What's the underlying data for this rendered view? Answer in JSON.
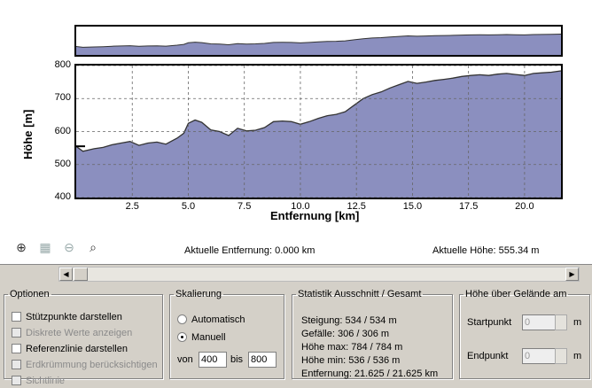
{
  "chart_data": {
    "type": "area",
    "title": "",
    "xlabel": "Entfernung [km]",
    "ylabel": "Höhe [m]",
    "xlim": [
      0,
      21.625
    ],
    "ylim": [
      400,
      800
    ],
    "xticks": [
      "2.5",
      "5.0",
      "7.5",
      "10.0",
      "12.5",
      "15.0",
      "17.5",
      "20.0"
    ],
    "yticks": [
      "400",
      "500",
      "600",
      "700",
      "800"
    ],
    "grid": true,
    "x": [
      0,
      0.3,
      0.8,
      1.2,
      1.6,
      2.0,
      2.4,
      2.8,
      3.2,
      3.6,
      4.0,
      4.5,
      4.8,
      5.0,
      5.3,
      5.6,
      6.0,
      6.4,
      6.8,
      7.2,
      7.6,
      8.0,
      8.4,
      8.8,
      9.2,
      9.6,
      10.0,
      10.4,
      10.8,
      11.2,
      11.6,
      12.0,
      12.4,
      12.8,
      13.2,
      13.6,
      14.0,
      14.4,
      14.8,
      15.2,
      15.6,
      16.0,
      16.4,
      16.8,
      17.2,
      17.6,
      18.0,
      18.4,
      18.8,
      19.2,
      19.6,
      20.0,
      20.4,
      20.8,
      21.2,
      21.625
    ],
    "y": [
      555,
      540,
      548,
      552,
      560,
      565,
      570,
      558,
      565,
      568,
      562,
      580,
      595,
      625,
      635,
      628,
      605,
      600,
      588,
      610,
      602,
      604,
      612,
      630,
      632,
      630,
      622,
      630,
      640,
      648,
      652,
      660,
      680,
      700,
      712,
      720,
      732,
      742,
      752,
      746,
      750,
      755,
      758,
      762,
      767,
      770,
      772,
      770,
      774,
      776,
      773,
      770,
      776,
      778,
      780,
      784
    ],
    "marker": {
      "x": 0,
      "y": 555.34
    }
  },
  "toolbar": {
    "icons": [
      {
        "name": "zoom-in-icon",
        "glyph": "⊕",
        "enabled": true
      },
      {
        "name": "zoom-area-icon",
        "glyph": "▦",
        "enabled": false
      },
      {
        "name": "zoom-out-icon",
        "glyph": "⊖",
        "enabled": false
      },
      {
        "name": "zoom-full-icon",
        "glyph": "⌕",
        "enabled": true
      }
    ],
    "current_distance": "Aktuelle Entfernung: 0.000 km",
    "current_height": "Aktuelle Höhe: 555.34 m"
  },
  "scrollbar": {
    "left_glyph": "◀",
    "right_glyph": "▶"
  },
  "options": {
    "legend": "Optionen",
    "items": [
      {
        "label": "Stützpunkte darstellen",
        "checked": false,
        "enabled": true
      },
      {
        "label": "Diskrete Werte anzeigen",
        "checked": false,
        "enabled": false
      },
      {
        "label": "Referenzlinie darstellen",
        "checked": false,
        "enabled": true
      },
      {
        "label": "Erdkrümmung berücksichtigen",
        "checked": false,
        "enabled": false
      },
      {
        "label": "Sichtlinie",
        "checked": false,
        "enabled": false
      }
    ]
  },
  "scaling": {
    "legend": "Skalierung",
    "auto_label": "Automatisch",
    "manual_label": "Manuell",
    "selected": "manual",
    "from_label": "von",
    "from_value": "400",
    "to_label": "bis",
    "to_value": "800"
  },
  "stats": {
    "legend": "Statistik  Ausschnitt / Gesamt",
    "rows": [
      "Steigung: 534 / 534 m",
      "Gefälle: 306 / 306 m",
      "Höhe max: 784 / 784 m",
      "Höhe min: 536 / 536 m",
      "Entfernung: 21.625 / 21.625 km"
    ]
  },
  "terrain": {
    "legend": "Höhe über Gelände am",
    "start_label": "Startpunkt",
    "start_value": "0",
    "start_unit": "m",
    "end_label": "Endpunkt",
    "end_value": "0",
    "end_unit": "m"
  },
  "colors": {
    "fill": "#8b8fbf",
    "line": "#333333",
    "grid": "#666666"
  }
}
